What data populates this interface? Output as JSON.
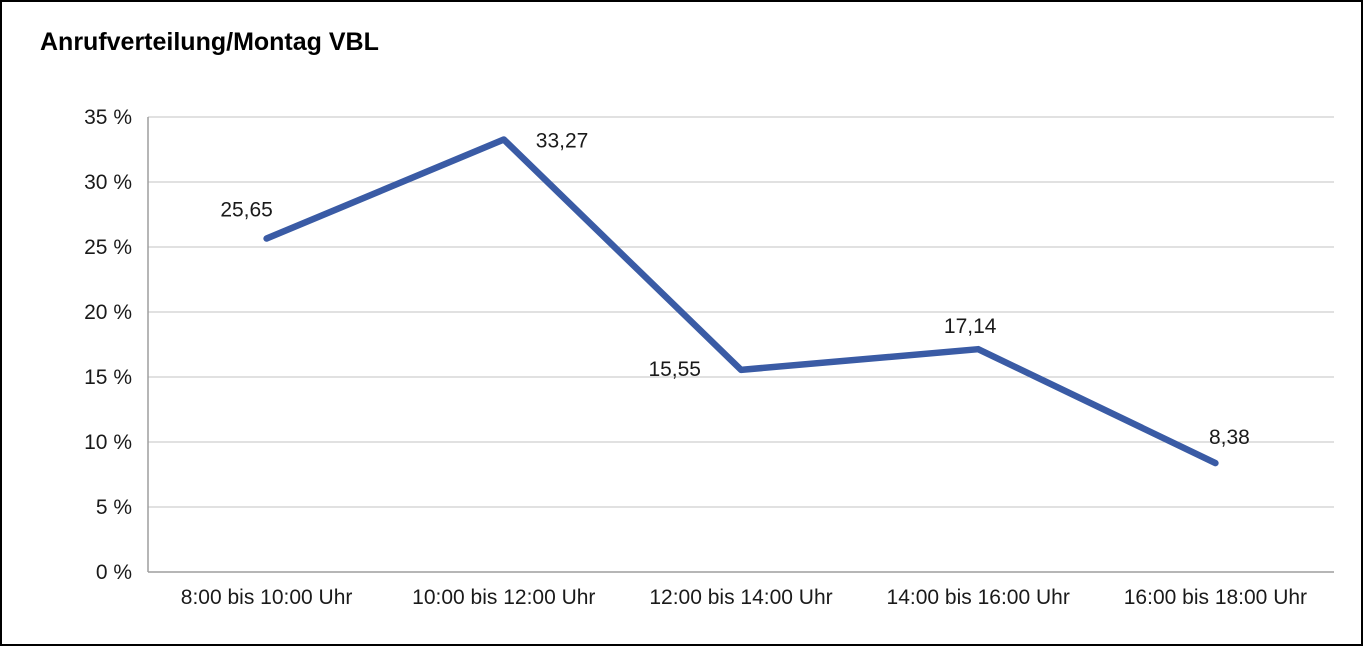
{
  "chart_data": {
    "type": "line",
    "title": "Anrufverteilung/Montag VBL",
    "categories": [
      "8:00 bis 10:00 Uhr",
      "10:00 bis 12:00 Uhr",
      "12:00 bis 14:00 Uhr",
      "14:00 bis 16:00 Uhr",
      "16:00 bis 18:00 Uhr"
    ],
    "values": [
      25.65,
      33.27,
      15.55,
      17.14,
      8.38
    ],
    "value_labels": [
      "25,65",
      "33,27",
      "15,55",
      "17,14",
      "8,38"
    ],
    "xlabel": "",
    "ylabel": "",
    "ylim": [
      0,
      35
    ],
    "yticks": [
      {
        "value": 0,
        "label": "0 %"
      },
      {
        "value": 5,
        "label": "5 %"
      },
      {
        "value": 10,
        "label": "10 %"
      },
      {
        "value": 15,
        "label": "15 %"
      },
      {
        "value": 20,
        "label": "20 %"
      },
      {
        "value": 25,
        "label": "25 %"
      },
      {
        "value": 30,
        "label": "30 %"
      },
      {
        "value": 35,
        "label": "35 %"
      }
    ],
    "grid": "horizontal",
    "legend": "none",
    "colors": {
      "line": "#3A5BA5",
      "grid": "#cfcfcf",
      "axis": "#9e9e9e",
      "text": "#1a1a1a",
      "background": "#ffffff",
      "border": "#000000"
    }
  }
}
